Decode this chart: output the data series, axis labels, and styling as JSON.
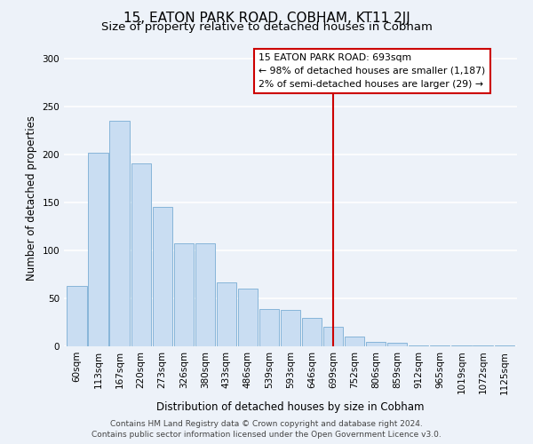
{
  "title": "15, EATON PARK ROAD, COBHAM, KT11 2JJ",
  "subtitle": "Size of property relative to detached houses in Cobham",
  "xlabel": "Distribution of detached houses by size in Cobham",
  "ylabel": "Number of detached properties",
  "categories": [
    "60sqm",
    "113sqm",
    "167sqm",
    "220sqm",
    "273sqm",
    "326sqm",
    "380sqm",
    "433sqm",
    "486sqm",
    "539sqm",
    "593sqm",
    "646sqm",
    "699sqm",
    "752sqm",
    "806sqm",
    "859sqm",
    "912sqm",
    "965sqm",
    "1019sqm",
    "1072sqm",
    "1125sqm"
  ],
  "values": [
    63,
    202,
    235,
    191,
    145,
    107,
    107,
    67,
    60,
    39,
    38,
    30,
    20,
    10,
    5,
    4,
    1,
    1,
    1,
    1,
    1
  ],
  "bar_color": "#c9ddf2",
  "bar_edge_color": "#7aadd4",
  "vline_index": 12,
  "vline_color": "#cc0000",
  "annotation_title": "15 EATON PARK ROAD: 693sqm",
  "annotation_line1": "← 98% of detached houses are smaller (1,187)",
  "annotation_line2": "2% of semi-detached houses are larger (29) →",
  "annotation_box_color": "#ffffff",
  "annotation_box_edge": "#cc0000",
  "footer1": "Contains HM Land Registry data © Crown copyright and database right 2024.",
  "footer2": "Contains public sector information licensed under the Open Government Licence v3.0.",
  "ylim": [
    0,
    310
  ],
  "yticks": [
    0,
    50,
    100,
    150,
    200,
    250,
    300
  ],
  "background_color": "#edf2f9",
  "grid_color": "#ffffff",
  "title_fontsize": 11,
  "subtitle_fontsize": 9.5,
  "xlabel_fontsize": 8.5,
  "ylabel_fontsize": 8.5,
  "tick_fontsize": 7.5,
  "footer_fontsize": 6.5
}
